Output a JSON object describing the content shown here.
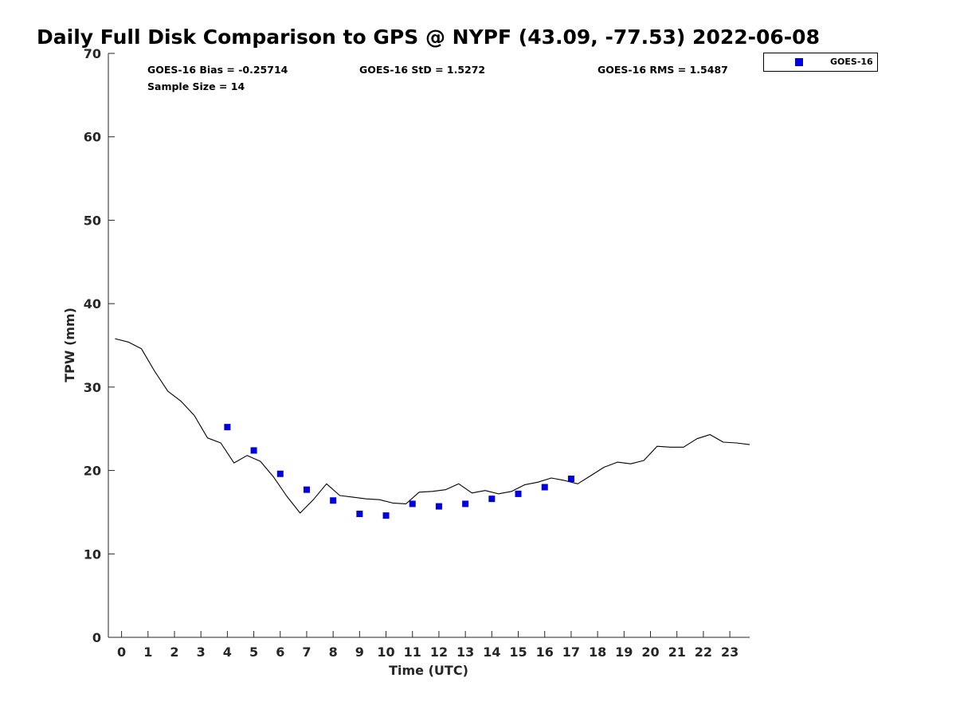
{
  "chart_data": {
    "type": "scatter",
    "title": "Daily Full Disk Comparison to GPS @ NYPF (43.09, -77.53) 2022-06-08",
    "xlabel": "Time (UTC)",
    "ylabel": "TPW (mm)",
    "xlim": [
      -0.5,
      23.75
    ],
    "ylim": [
      0,
      70
    ],
    "x_ticks": [
      0,
      1,
      2,
      3,
      4,
      5,
      6,
      7,
      8,
      9,
      10,
      11,
      12,
      13,
      14,
      15,
      16,
      17,
      18,
      19,
      20,
      21,
      22,
      23
    ],
    "y_ticks": [
      0,
      10,
      20,
      30,
      40,
      50,
      60,
      70
    ],
    "grid": false,
    "legend_position": "top-right, outside plot",
    "stats": {
      "bias": "GOES-16 Bias = -0.25714",
      "std": "GOES-16 StD = 1.5272",
      "rms": "GOES-16 RMS = 1.5487",
      "sample_size": "Sample Size = 14"
    },
    "series": [
      {
        "name": "GOES-16",
        "kind": "scatter",
        "marker": "square",
        "color": "#0000dd",
        "x": [
          4,
          5,
          6,
          7,
          8,
          9,
          10,
          11,
          12,
          13,
          14,
          15,
          16,
          17
        ],
        "y": [
          25.2,
          22.4,
          19.6,
          17.7,
          16.4,
          14.8,
          14.6,
          16.0,
          15.7,
          16.0,
          16.6,
          17.2,
          18.0,
          19.0
        ]
      },
      {
        "kind": "line",
        "color": "#000000",
        "x": [
          -0.25,
          0.25,
          0.75,
          1.25,
          1.75,
          2.25,
          2.75,
          3.25,
          3.75,
          4.25,
          4.75,
          5.25,
          5.75,
          6.25,
          6.75,
          7.25,
          7.75,
          8.25,
          8.75,
          9.25,
          9.75,
          10.25,
          10.75,
          11.25,
          11.75,
          12.25,
          12.75,
          13.25,
          13.75,
          14.25,
          14.75,
          15.25,
          15.75,
          16.25,
          16.75,
          17.25,
          17.75,
          18.25,
          18.75,
          19.25,
          19.75,
          20.25,
          20.75,
          21.25,
          21.75,
          22.25,
          22.75,
          23.25,
          23.75
        ],
        "y": [
          35.8,
          35.4,
          34.6,
          31.9,
          29.5,
          28.3,
          26.6,
          23.9,
          23.3,
          20.9,
          21.8,
          21.1,
          19.2,
          16.9,
          14.9,
          16.5,
          18.4,
          17.0,
          16.8,
          16.6,
          16.5,
          16.1,
          16.0,
          17.4,
          17.5,
          17.7,
          18.4,
          17.3,
          17.6,
          17.2,
          17.5,
          18.3,
          18.6,
          19.1,
          18.8,
          18.4,
          19.4,
          20.4,
          21.0,
          20.8,
          21.2,
          22.9,
          22.8,
          22.8,
          23.8,
          24.3,
          23.4,
          23.3,
          23.1
        ]
      }
    ]
  }
}
